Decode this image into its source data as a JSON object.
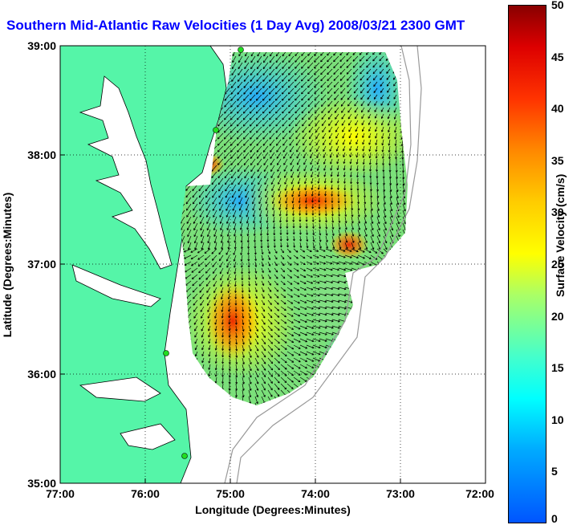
{
  "title": "Southern Mid-Atlantic Raw Velocities (1 Day Avg) 2008/03/21 2300 GMT",
  "x_axis": {
    "label": "Longitude (Degrees:Minutes)",
    "ticks": [
      "77:00",
      "76:00",
      "75:00",
      "74:00",
      "73:00",
      "72:00"
    ]
  },
  "y_axis": {
    "label": "Latitude (Degrees:Minutes)",
    "ticks": [
      "39:00",
      "38:00",
      "37:00",
      "36:00",
      "35:00"
    ]
  },
  "colorbar": {
    "label": "Surface Velocity (cm/s)",
    "ticks": [
      "50",
      "45",
      "40",
      "35",
      "30",
      "25",
      "20",
      "15",
      "10",
      "5",
      "0"
    ],
    "range": [
      0,
      50
    ]
  },
  "colors": {
    "land": "#55f5a8",
    "water": "#ffffff",
    "title": "#0000ff",
    "station": "#22dd22"
  }
}
